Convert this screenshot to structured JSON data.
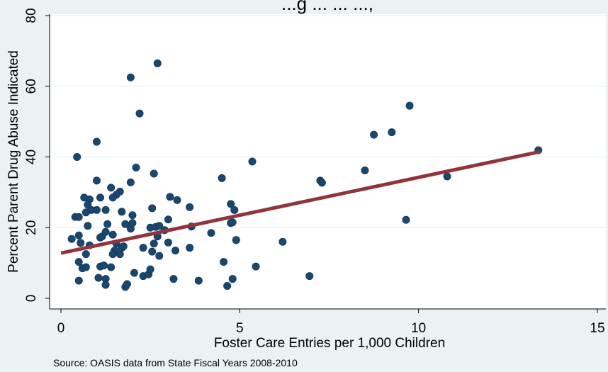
{
  "chart_data": {
    "type": "scatter",
    "title": "...g ... ... ...,",
    "xlabel": "Foster Care Entries per 1,000 Children",
    "ylabel": "Percent Parent Drug Abuse Indicated",
    "note": "Source: OASIS data from State Fiscal Years 2008-2010",
    "xlim": [
      0,
      15
    ],
    "ylim": [
      0,
      80
    ],
    "xticks": [
      0,
      5,
      10,
      15
    ],
    "yticks": [
      0,
      20,
      40,
      60,
      80
    ],
    "xtick_labels": [
      "0",
      "5",
      "10",
      "15"
    ],
    "ytick_labels": [
      "0",
      "20",
      "40",
      "60",
      "80"
    ],
    "grid": true,
    "marker_color": "#1A476F",
    "fit_line_color": "#90353B",
    "background_color": "#EAF2F3",
    "fit_line": {
      "x": [
        0,
        13.4
      ],
      "y": [
        12.8,
        41.5
      ]
    },
    "points": [
      [
        1.95,
        62.5
      ],
      [
        2.7,
        66.5
      ],
      [
        2.2,
        52.3
      ],
      [
        1.0,
        44.3
      ],
      [
        0.45,
        40.0
      ],
      [
        2.1,
        37.0
      ],
      [
        2.6,
        35.3
      ],
      [
        1.0,
        33.3
      ],
      [
        1.95,
        32.8
      ],
      [
        1.4,
        31.3
      ],
      [
        1.65,
        30.2
      ],
      [
        1.55,
        29.3
      ],
      [
        1.45,
        28.5
      ],
      [
        0.65,
        28.5
      ],
      [
        0.8,
        28.0
      ],
      [
        1.1,
        28.5
      ],
      [
        0.75,
        26.5
      ],
      [
        0.7,
        24.3
      ],
      [
        0.85,
        25.0
      ],
      [
        1.0,
        25.0
      ],
      [
        1.25,
        25.0
      ],
      [
        1.7,
        24.5
      ],
      [
        0.4,
        23.0
      ],
      [
        0.5,
        23.0
      ],
      [
        0.3,
        16.8
      ],
      [
        0.5,
        17.8
      ],
      [
        0.55,
        15.7
      ],
      [
        0.75,
        20.5
      ],
      [
        0.8,
        15.0
      ],
      [
        0.7,
        12.5
      ],
      [
        1.1,
        17.2
      ],
      [
        1.15,
        17.5
      ],
      [
        1.25,
        18.8
      ],
      [
        1.3,
        21.0
      ],
      [
        1.45,
        18.0
      ],
      [
        1.55,
        15.5
      ],
      [
        1.5,
        13.5
      ],
      [
        1.45,
        12.5
      ],
      [
        1.65,
        12.5
      ],
      [
        1.7,
        14.3
      ],
      [
        1.75,
        14.7
      ],
      [
        1.95,
        19.7
      ],
      [
        2.0,
        23.5
      ],
      [
        1.8,
        21.0
      ],
      [
        2.0,
        21.3
      ],
      [
        0.5,
        10.3
      ],
      [
        0.6,
        8.5
      ],
      [
        0.7,
        8.8
      ],
      [
        1.1,
        9.0
      ],
      [
        1.2,
        9.3
      ],
      [
        1.4,
        8.8
      ],
      [
        1.05,
        5.8
      ],
      [
        1.25,
        5.5
      ],
      [
        1.25,
        3.8
      ],
      [
        1.8,
        3.2
      ],
      [
        1.85,
        4.0
      ],
      [
        2.05,
        7.2
      ],
      [
        0.5,
        5.0
      ],
      [
        2.3,
        14.3
      ],
      [
        2.3,
        6.3
      ],
      [
        2.45,
        6.8
      ],
      [
        2.5,
        8.2
      ],
      [
        2.5,
        20.0
      ],
      [
        2.55,
        25.5
      ],
      [
        2.6,
        15.5
      ],
      [
        2.65,
        20.2
      ],
      [
        2.7,
        17.5
      ],
      [
        2.75,
        20.5
      ],
      [
        2.75,
        12.0
      ],
      [
        2.55,
        13.2
      ],
      [
        2.9,
        19.3
      ],
      [
        3.0,
        22.3
      ],
      [
        3.0,
        15.8
      ],
      [
        3.05,
        28.7
      ],
      [
        3.2,
        13.5
      ],
      [
        3.15,
        5.5
      ],
      [
        3.25,
        27.8
      ],
      [
        3.6,
        25.8
      ],
      [
        3.65,
        20.3
      ],
      [
        3.6,
        14.3
      ],
      [
        3.85,
        5.0
      ],
      [
        4.2,
        18.5
      ],
      [
        4.5,
        34.0
      ],
      [
        4.55,
        10.3
      ],
      [
        4.65,
        3.5
      ],
      [
        4.75,
        26.7
      ],
      [
        4.85,
        25.0
      ],
      [
        4.75,
        21.3
      ],
      [
        4.8,
        21.5
      ],
      [
        4.8,
        5.5
      ],
      [
        4.9,
        16.5
      ],
      [
        5.35,
        38.7
      ],
      [
        5.45,
        9.0
      ],
      [
        6.2,
        16.0
      ],
      [
        6.95,
        6.3
      ],
      [
        7.25,
        33.3
      ],
      [
        7.3,
        32.7
      ],
      [
        8.5,
        36.2
      ],
      [
        8.75,
        46.3
      ],
      [
        9.25,
        47.0
      ],
      [
        9.65,
        22.2
      ],
      [
        9.75,
        54.5
      ],
      [
        10.8,
        34.5
      ],
      [
        13.35,
        41.9
      ]
    ]
  }
}
